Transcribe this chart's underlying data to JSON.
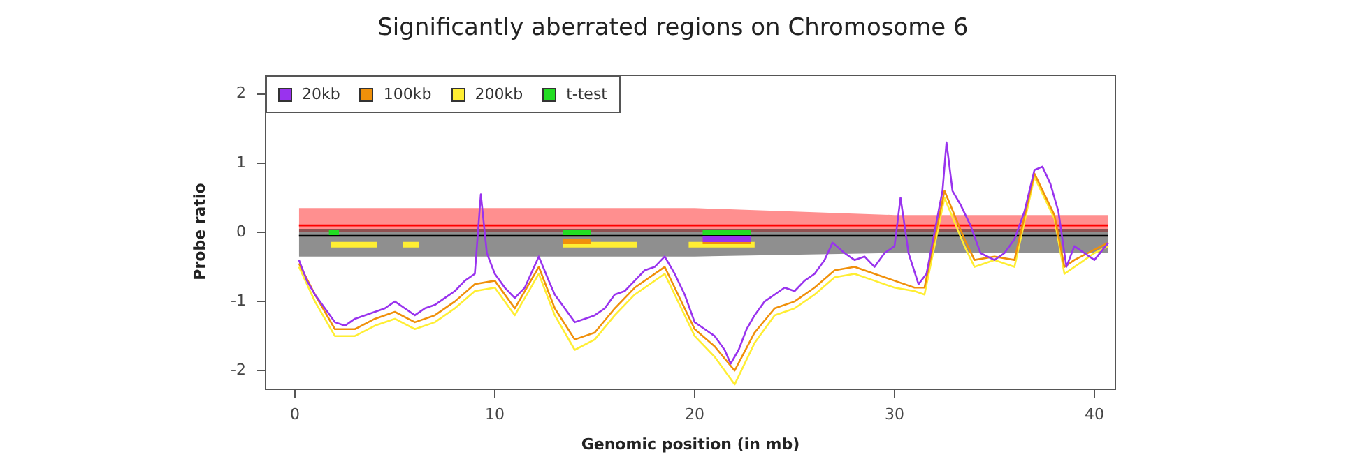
{
  "chart_data": {
    "type": "line",
    "title": "Significantly aberrated regions on Chromosome 6",
    "xlabel": "Genomic position (in mb)",
    "ylabel": "Probe ratio",
    "xlim": [
      -1.47,
      41.05
    ],
    "ylim": [
      -2.27,
      2.27
    ],
    "xticks": [
      0,
      10,
      20,
      30,
      40
    ],
    "yticks": [
      -2,
      -1,
      0,
      1,
      2
    ],
    "grid": false,
    "legend": "top left",
    "marker": "none",
    "line_style": "solid",
    "series": [
      {
        "color": "#ff0000",
        "x": [
          0.2,
          10,
          20,
          30,
          40.7
        ],
        "values": [
          0.1,
          0.1,
          0.1,
          0.1,
          0.1
        ],
        "lower": [
          0,
          0,
          0,
          0,
          0
        ],
        "upper": [
          0.35,
          0.35,
          0.35,
          0.25,
          0.25
        ]
      },
      {
        "color": "#000000",
        "x": [
          0.2,
          10,
          20,
          30,
          40.7
        ],
        "values": [
          -0.05,
          -0.05,
          -0.05,
          -0.05,
          -0.05
        ],
        "lower": [
          -0.35,
          -0.35,
          -0.35,
          -0.3,
          -0.3
        ],
        "upper": [
          0.05,
          0.05,
          0.05,
          0.05,
          0.05
        ]
      },
      {
        "name": "200kb",
        "color": "#ffee33",
        "x": [
          0.2,
          1,
          2,
          3,
          4,
          5,
          6,
          7,
          8,
          9,
          10,
          11,
          12.2,
          13,
          14,
          15,
          16,
          17,
          18.5,
          19,
          20,
          21,
          22,
          23,
          24,
          25,
          26,
          27,
          28,
          29,
          30,
          31,
          31.5,
          32.5,
          33.5,
          34,
          35,
          36,
          37,
          38,
          38.5,
          39,
          40,
          40.7
        ],
        "values": [
          -0.5,
          -1.0,
          -1.5,
          -1.5,
          -1.35,
          -1.25,
          -1.4,
          -1.3,
          -1.1,
          -0.85,
          -0.8,
          -1.2,
          -0.6,
          -1.2,
          -1.7,
          -1.55,
          -1.2,
          -0.9,
          -0.6,
          -0.9,
          -1.5,
          -1.8,
          -2.2,
          -1.6,
          -1.2,
          -1.1,
          -0.9,
          -0.65,
          -0.6,
          -0.7,
          -0.8,
          -0.85,
          -0.9,
          0.5,
          -0.2,
          -0.5,
          -0.4,
          -0.5,
          0.8,
          0.2,
          -0.6,
          -0.5,
          -0.3,
          -0.2
        ]
      },
      {
        "name": "100kb",
        "color": "#f0900a",
        "x": [
          0.2,
          1,
          2,
          3,
          4,
          5,
          6,
          7,
          8,
          9,
          10,
          11,
          12.2,
          13,
          14,
          15,
          16,
          17,
          18.5,
          19,
          20,
          21,
          22,
          23,
          24,
          25,
          26,
          27,
          28,
          29,
          30,
          31,
          31.5,
          32.5,
          33.5,
          34,
          35,
          36,
          37,
          38,
          38.5,
          39,
          40,
          40.7
        ],
        "values": [
          -0.45,
          -0.9,
          -1.4,
          -1.4,
          -1.25,
          -1.15,
          -1.3,
          -1.2,
          -1.0,
          -0.75,
          -0.7,
          -1.1,
          -0.5,
          -1.1,
          -1.55,
          -1.45,
          -1.1,
          -0.8,
          -0.5,
          -0.8,
          -1.4,
          -1.65,
          -2.0,
          -1.45,
          -1.1,
          -1.0,
          -0.8,
          -0.55,
          -0.5,
          -0.6,
          -0.7,
          -0.8,
          -0.8,
          0.6,
          -0.1,
          -0.4,
          -0.35,
          -0.4,
          0.85,
          0.25,
          -0.5,
          -0.4,
          -0.25,
          -0.15
        ]
      },
      {
        "name": "20kb",
        "color": "#9933ee",
        "x": [
          0.2,
          0.6,
          1,
          1.5,
          2,
          2.5,
          3,
          3.5,
          4,
          4.5,
          5,
          5.5,
          6,
          6.5,
          7,
          7.5,
          8,
          8.5,
          9,
          9.3,
          9.6,
          10,
          10.5,
          11,
          11.5,
          12.2,
          12.7,
          13,
          13.5,
          14,
          14.5,
          15,
          15.5,
          16,
          16.5,
          17,
          17.5,
          18,
          18.5,
          19,
          19.5,
          20,
          20.5,
          21,
          21.5,
          21.8,
          22.2,
          22.6,
          23,
          23.5,
          24,
          24.5,
          25,
          25.5,
          26,
          26.5,
          26.9,
          27.5,
          28,
          28.5,
          29,
          29.5,
          30,
          30.3,
          30.7,
          31.2,
          31.6,
          32,
          32.4,
          32.6,
          32.9,
          33.3,
          33.8,
          34.3,
          35,
          35.5,
          36,
          36.5,
          37,
          37.4,
          37.8,
          38.2,
          38.6,
          39,
          39.5,
          40,
          40.7
        ],
        "values": [
          -0.4,
          -0.7,
          -0.9,
          -1.1,
          -1.3,
          -1.35,
          -1.25,
          -1.2,
          -1.15,
          -1.1,
          -1.0,
          -1.1,
          -1.2,
          -1.1,
          -1.05,
          -0.95,
          -0.85,
          -0.7,
          -0.6,
          0.55,
          -0.3,
          -0.6,
          -0.8,
          -0.95,
          -0.8,
          -0.35,
          -0.7,
          -0.9,
          -1.1,
          -1.3,
          -1.25,
          -1.2,
          -1.1,
          -0.9,
          -0.85,
          -0.7,
          -0.55,
          -0.5,
          -0.35,
          -0.6,
          -0.9,
          -1.3,
          -1.4,
          -1.5,
          -1.7,
          -1.9,
          -1.7,
          -1.4,
          -1.2,
          -1.0,
          -0.9,
          -0.8,
          -0.85,
          -0.7,
          -0.6,
          -0.4,
          -0.15,
          -0.3,
          -0.4,
          -0.35,
          -0.5,
          -0.3,
          -0.2,
          0.5,
          -0.3,
          -0.75,
          -0.6,
          0.0,
          0.6,
          1.3,
          0.6,
          0.4,
          0.1,
          -0.3,
          -0.4,
          -0.3,
          -0.1,
          0.3,
          0.9,
          0.95,
          0.7,
          0.3,
          -0.5,
          -0.2,
          -0.3,
          -0.4,
          -0.15
        ]
      },
      {
        "color": "#ffee33",
        "x": [
          1.8,
          4.1,
          4.11,
          5.4,
          6.2,
          6.21,
          13.4,
          17.1,
          17.11,
          19.7,
          23.0
        ],
        "values": [
          -0.18,
          -0.18,
          null,
          -0.18,
          -0.18,
          null,
          -0.18,
          -0.18,
          null,
          -0.18,
          -0.18
        ]
      },
      {
        "color": "#f0900a",
        "x": [
          13.4,
          14.8,
          14.81,
          20.4,
          22.8
        ],
        "values": [
          -0.13,
          -0.13,
          null,
          -0.13,
          -0.13
        ]
      },
      {
        "color": "#9933ee",
        "x": [
          20.4,
          22.8
        ],
        "values": [
          -0.1,
          -0.1
        ]
      },
      {
        "name": "t-test",
        "color": "#22dd22",
        "x": [
          1.7,
          2.2,
          2.21,
          13.4,
          14.8,
          14.81,
          20.4,
          22.8
        ],
        "values": [
          0,
          0,
          null,
          0,
          0,
          null,
          0,
          0
        ]
      }
    ]
  }
}
